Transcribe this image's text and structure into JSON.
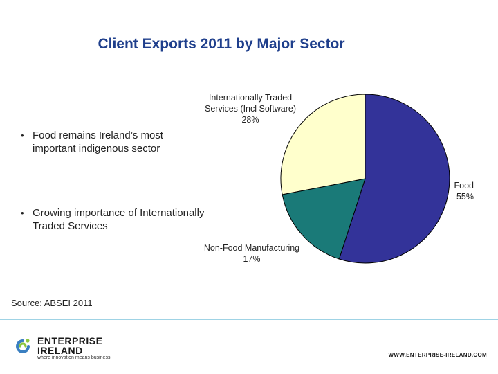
{
  "slide": {
    "title": "Client Exports 2011 by Major Sector",
    "bullets": [
      {
        "marker": "•",
        "text": "Food remains Ireland’s most important indigenous sector"
      },
      {
        "marker": "•",
        "text": "Growing importance of Internationally Traded Services"
      }
    ],
    "source": "Source: ABSEI 2011",
    "website": "WWW.ENTERPRISE-IRELAND.COM",
    "logo": {
      "icon": "enterprise-ireland-swirl-icon",
      "line1": "ENTERPRISE",
      "line2": "IRELAND",
      "tagline": "where innovation means business"
    }
  },
  "chart_data": {
    "type": "pie",
    "title": "Client Exports 2011 by Major Sector",
    "slices": [
      {
        "label": "Food",
        "value": 55,
        "value_label": "55%",
        "color": "#333399"
      },
      {
        "label": "Non-Food Manufacturing",
        "value": 17,
        "value_label": "17%",
        "color": "#1a7a78"
      },
      {
        "label": "Internationally Traded Services (Incl Software)",
        "value": 28,
        "value_label": "28%",
        "color": "#ffffcc"
      }
    ],
    "start_angle_deg": 0,
    "direction": "clockwise",
    "outline_color": "#000000"
  }
}
